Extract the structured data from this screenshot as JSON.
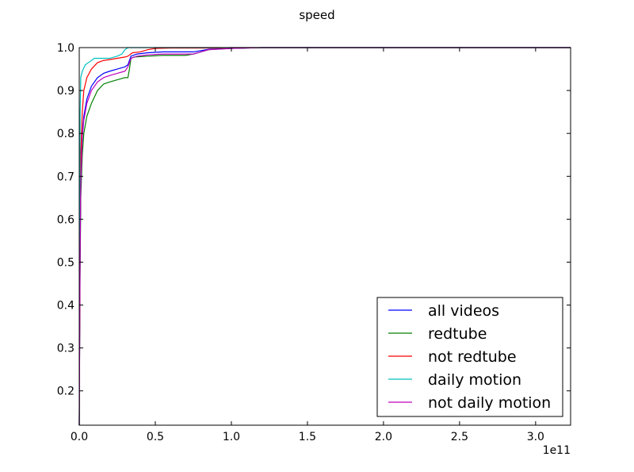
{
  "chart_data": {
    "type": "line",
    "title": "speed",
    "xlabel": "",
    "ylabel": "",
    "x_offset_label": "1e11",
    "xlim": [
      0,
      3.23
    ],
    "ylim": [
      0.12,
      1.0
    ],
    "xticks": [
      0.0,
      0.5,
      1.0,
      1.5,
      2.0,
      2.5,
      3.0
    ],
    "xtick_labels": [
      "0.0",
      "0.5",
      "1.0",
      "1.5",
      "2.0",
      "2.5",
      "3.0"
    ],
    "yticks": [
      0.2,
      0.3,
      0.4,
      0.5,
      0.6,
      0.7,
      0.8,
      0.9,
      1.0
    ],
    "ytick_labels": [
      "0.2",
      "0.3",
      "0.4",
      "0.5",
      "0.6",
      "0.7",
      "0.8",
      "0.9",
      "1.0"
    ],
    "grid": false,
    "legend_position": "lower-right",
    "series": [
      {
        "name": "all videos",
        "color": "#0000ff",
        "x": [
          0,
          0.005,
          0.01,
          0.02,
          0.03,
          0.05,
          0.08,
          0.12,
          0.16,
          0.2,
          0.25,
          0.3,
          0.32,
          0.34,
          0.38,
          0.45,
          0.55,
          0.75,
          0.8,
          0.85,
          1.0,
          1.1,
          1.2,
          3.23
        ],
        "y": [
          0.12,
          0.5,
          0.7,
          0.8,
          0.84,
          0.88,
          0.91,
          0.93,
          0.94,
          0.945,
          0.95,
          0.955,
          0.96,
          0.98,
          0.985,
          0.988,
          0.99,
          0.99,
          0.993,
          0.996,
          0.998,
          0.999,
          1.0,
          1.0
        ]
      },
      {
        "name": "redtube",
        "color": "#008000",
        "x": [
          0,
          0.005,
          0.01,
          0.02,
          0.03,
          0.05,
          0.08,
          0.12,
          0.16,
          0.2,
          0.25,
          0.3,
          0.32,
          0.33,
          0.34,
          0.36,
          0.45,
          0.55,
          0.7,
          0.75,
          0.8,
          0.85,
          1.0,
          1.1,
          1.2,
          3.23
        ],
        "y": [
          0.12,
          0.45,
          0.65,
          0.75,
          0.8,
          0.84,
          0.87,
          0.9,
          0.915,
          0.92,
          0.925,
          0.93,
          0.93,
          0.95,
          0.975,
          0.978,
          0.98,
          0.982,
          0.982,
          0.985,
          0.99,
          0.995,
          0.998,
          0.999,
          1.0,
          1.0
        ]
      },
      {
        "name": "not redtube",
        "color": "#ff0000",
        "x": [
          0,
          0.005,
          0.01,
          0.02,
          0.03,
          0.05,
          0.08,
          0.12,
          0.16,
          0.2,
          0.25,
          0.3,
          0.32,
          0.35,
          0.4,
          0.45,
          0.5,
          0.6,
          0.8,
          0.9,
          1.0,
          1.1,
          3.23
        ],
        "y": [
          0.12,
          0.55,
          0.75,
          0.85,
          0.9,
          0.93,
          0.95,
          0.965,
          0.97,
          0.972,
          0.975,
          0.978,
          0.98,
          0.988,
          0.99,
          0.995,
          0.998,
          0.999,
          0.999,
          0.999,
          1.0,
          1.0,
          1.0
        ]
      },
      {
        "name": "daily motion",
        "color": "#00bfbf",
        "x": [
          0,
          0.003,
          0.006,
          0.01,
          0.02,
          0.04,
          0.06,
          0.08,
          0.1,
          0.15,
          0.2,
          0.25,
          0.28,
          0.3,
          0.32,
          0.5,
          0.8,
          1.0,
          3.23
        ],
        "y": [
          0.12,
          0.6,
          0.85,
          0.93,
          0.945,
          0.96,
          0.965,
          0.97,
          0.975,
          0.975,
          0.975,
          0.98,
          0.985,
          0.995,
          1.0,
          1.0,
          1.0,
          1.0,
          1.0
        ]
      },
      {
        "name": "not daily motion",
        "color": "#bf00bf",
        "x": [
          0,
          0.005,
          0.01,
          0.02,
          0.03,
          0.05,
          0.08,
          0.12,
          0.16,
          0.2,
          0.25,
          0.3,
          0.32,
          0.34,
          0.38,
          0.45,
          0.55,
          0.75,
          0.8,
          0.85,
          1.0,
          1.1,
          1.2,
          3.23
        ],
        "y": [
          0.12,
          0.48,
          0.68,
          0.79,
          0.83,
          0.87,
          0.9,
          0.92,
          0.93,
          0.935,
          0.94,
          0.945,
          0.955,
          0.975,
          0.98,
          0.983,
          0.985,
          0.985,
          0.99,
          0.995,
          0.998,
          0.999,
          1.0,
          1.0
        ]
      }
    ]
  }
}
